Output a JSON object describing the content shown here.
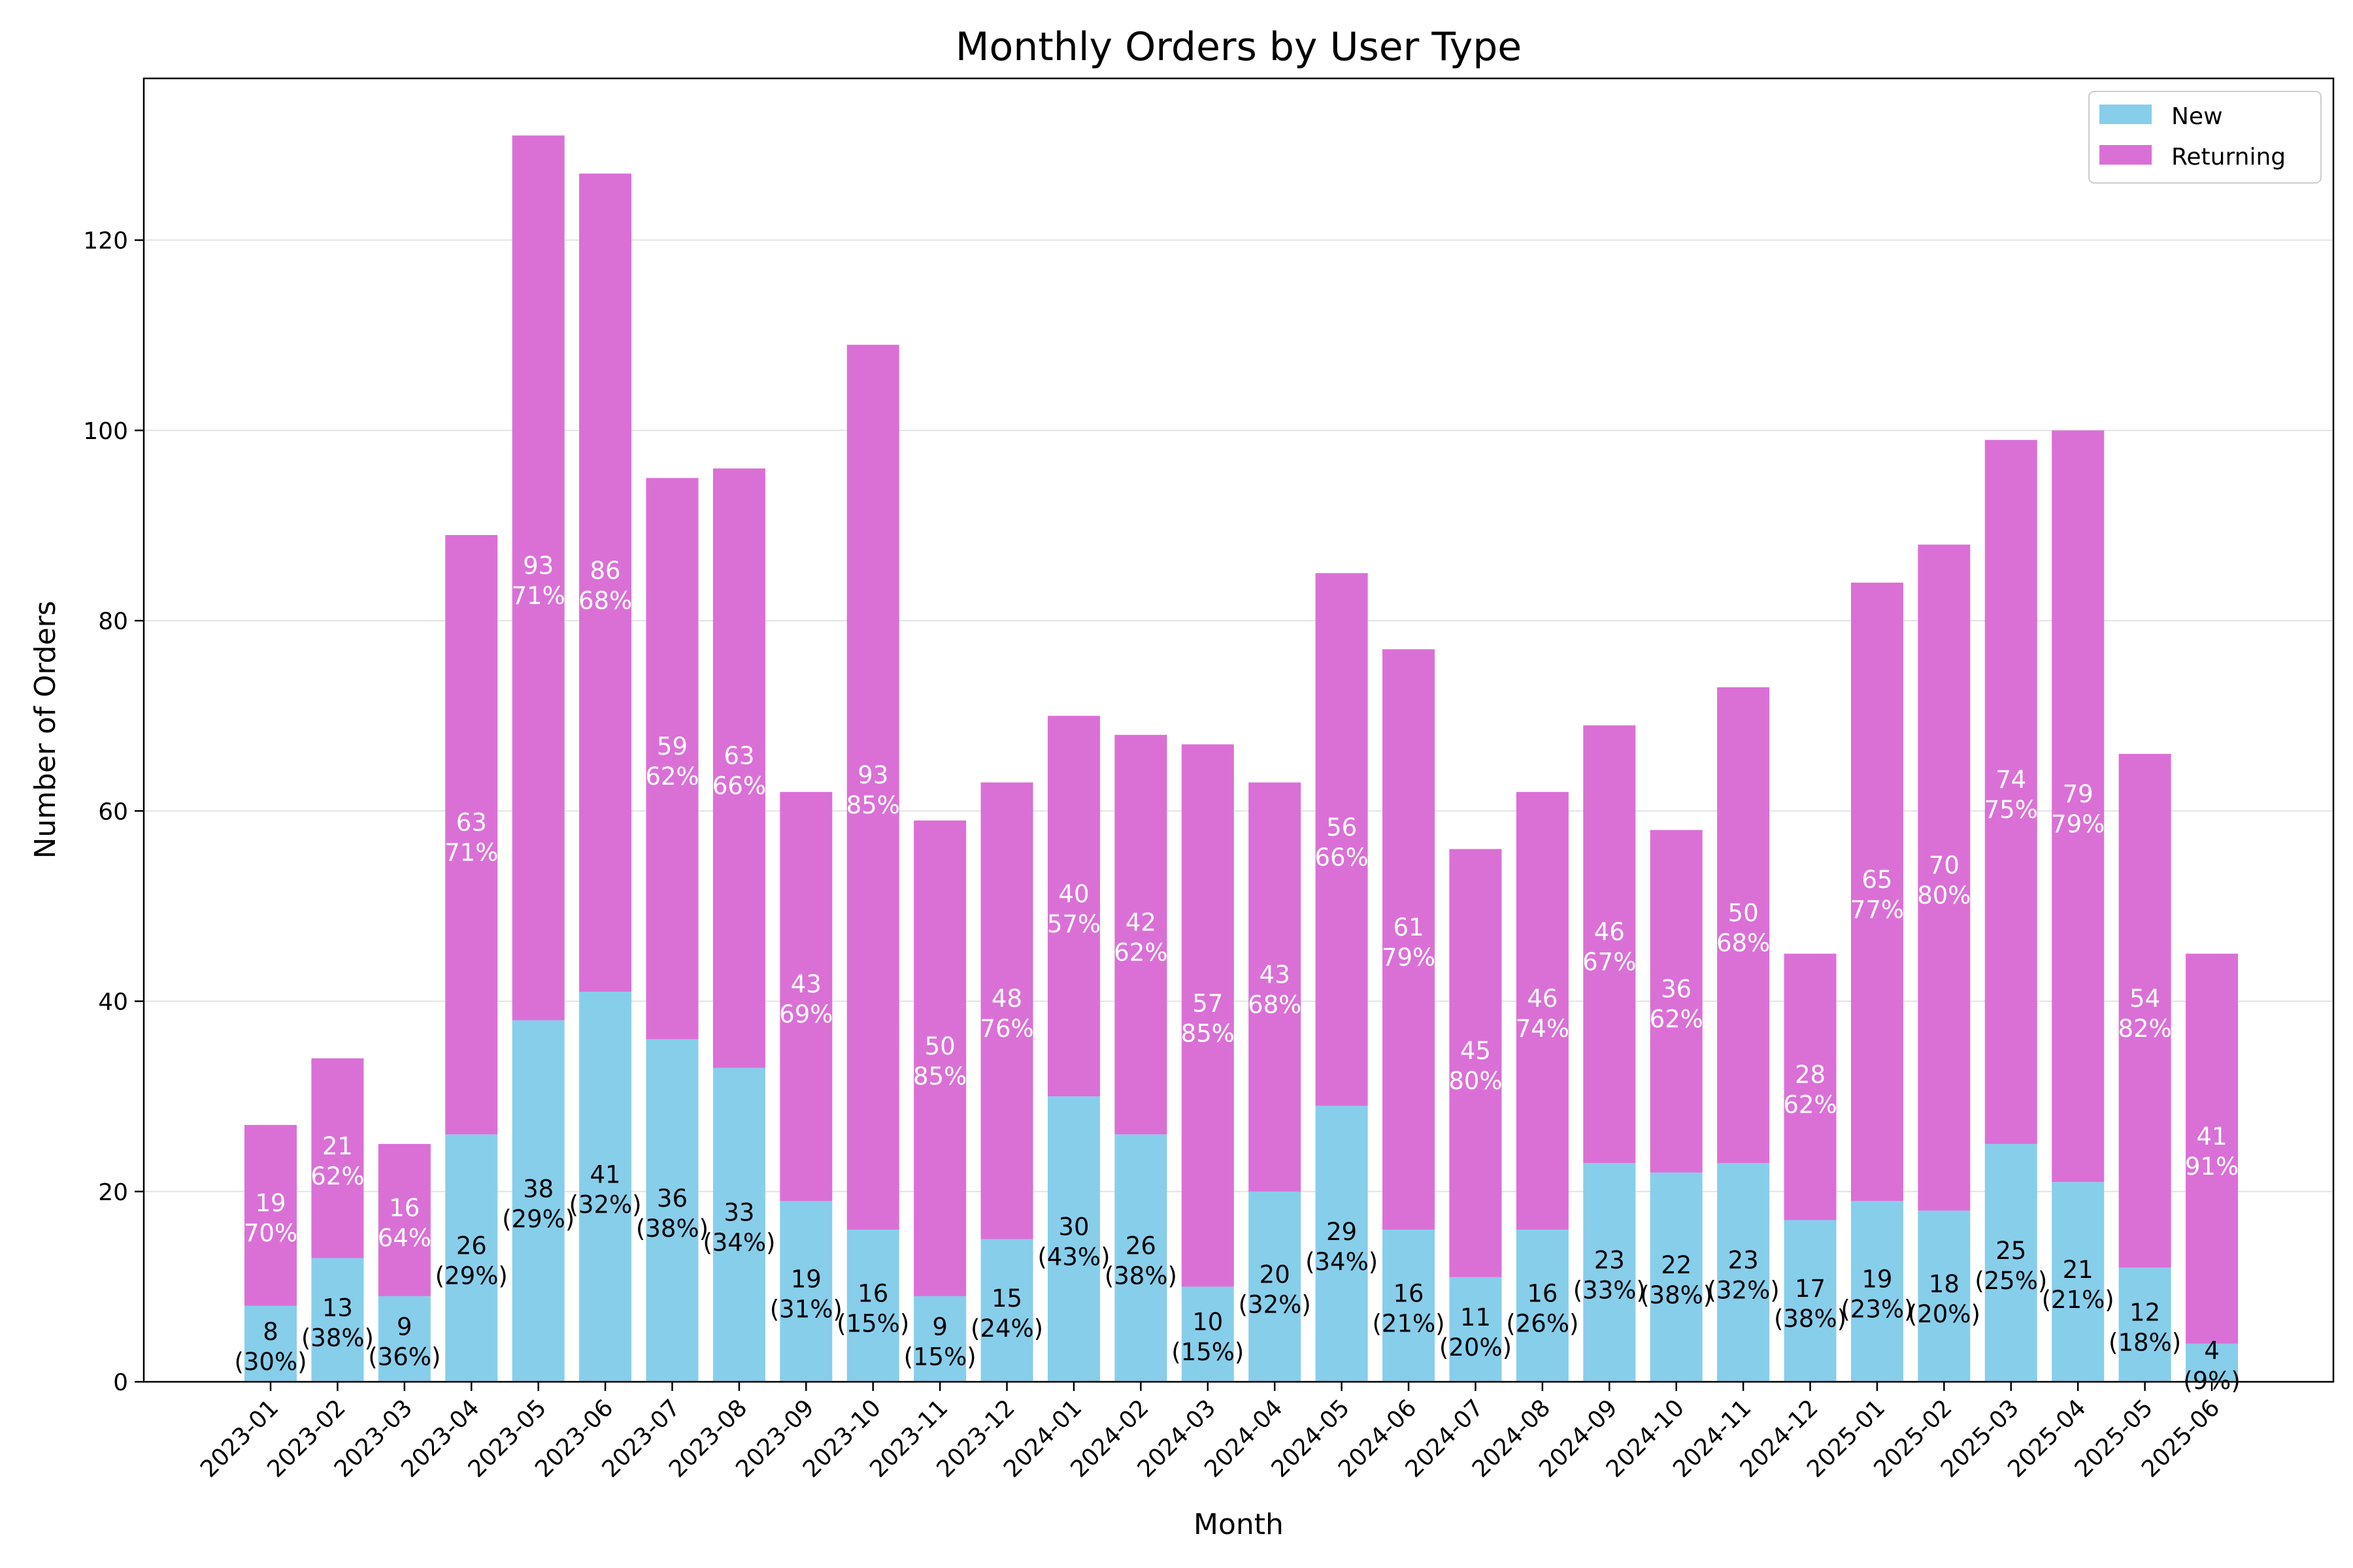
{
  "chart_data": {
    "type": "bar",
    "stacked": true,
    "title": "Monthly Orders by User Type",
    "xlabel": "Month",
    "ylabel": "Number of Orders",
    "ylim": [
      0,
      137
    ],
    "yticks": [
      0,
      20,
      40,
      60,
      80,
      100,
      120
    ],
    "grid": "horizontal",
    "legend_position": "top-right",
    "categories": [
      "2023-01",
      "2023-02",
      "2023-03",
      "2023-04",
      "2023-05",
      "2023-06",
      "2023-07",
      "2023-08",
      "2023-09",
      "2023-10",
      "2023-11",
      "2023-12",
      "2024-01",
      "2024-02",
      "2024-03",
      "2024-04",
      "2024-05",
      "2024-06",
      "2024-07",
      "2024-08",
      "2024-09",
      "2024-10",
      "2024-11",
      "2024-12",
      "2025-01",
      "2025-02",
      "2025-03",
      "2025-04",
      "2025-05",
      "2025-06"
    ],
    "series": [
      {
        "name": "New",
        "color": "#87CEEB",
        "label_color": "#000000",
        "values": [
          8,
          13,
          9,
          26,
          38,
          41,
          36,
          33,
          19,
          16,
          9,
          15,
          30,
          26,
          10,
          20,
          29,
          16,
          11,
          16,
          23,
          22,
          23,
          17,
          19,
          18,
          25,
          21,
          12,
          4
        ],
        "pct_labels": [
          "(30%)",
          "(38%)",
          "(36%)",
          "(29%)",
          "(29%)",
          "(32%)",
          "(38%)",
          "(34%)",
          "(31%)",
          "(15%)",
          "(15%)",
          "(24%)",
          "(43%)",
          "(38%)",
          "(15%)",
          "(32%)",
          "(34%)",
          "(21%)",
          "(20%)",
          "(26%)",
          "(33%)",
          "(38%)",
          "(32%)",
          "(38%)",
          "(23%)",
          "(20%)",
          "(25%)",
          "(21%)",
          "(18%)",
          "(9%)"
        ]
      },
      {
        "name": "Returning",
        "color": "#DA70D6",
        "label_color": "#ffffff",
        "values": [
          19,
          21,
          16,
          63,
          93,
          86,
          59,
          63,
          43,
          93,
          50,
          48,
          40,
          42,
          57,
          43,
          56,
          61,
          45,
          46,
          46,
          36,
          50,
          28,
          65,
          70,
          74,
          79,
          54,
          41
        ],
        "pct_labels": [
          "70%",
          "62%",
          "64%",
          "71%",
          "71%",
          "68%",
          "62%",
          "66%",
          "69%",
          "85%",
          "85%",
          "76%",
          "57%",
          "62%",
          "85%",
          "68%",
          "66%",
          "79%",
          "80%",
          "74%",
          "67%",
          "62%",
          "68%",
          "62%",
          "77%",
          "80%",
          "75%",
          "79%",
          "82%",
          "91%"
        ]
      }
    ]
  }
}
